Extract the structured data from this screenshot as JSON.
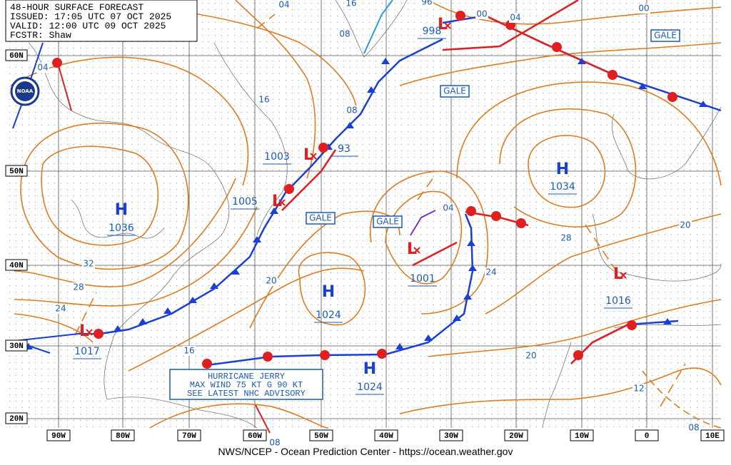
{
  "header": {
    "lines": [
      "48-HOUR SURFACE FORECAST",
      "ISSUED: 17:05 UTC 07 OCT 2025",
      "VALID: 12:00 UTC 09 OCT 2025",
      "FCSTR: Shaw"
    ]
  },
  "grid": {
    "lat_labels": [
      "60N",
      "50N",
      "40N",
      "30N",
      "20N"
    ],
    "lon_labels": [
      "90W",
      "80W",
      "70W",
      "60W",
      "50W",
      "40W",
      "30W",
      "20W",
      "10W",
      "0",
      "10E"
    ]
  },
  "logo": "NOAA",
  "systems": [
    {
      "symbol": "L",
      "pressure": "998"
    },
    {
      "symbol": "L",
      "pressure": "1003"
    },
    {
      "pressure": "93"
    },
    {
      "symbol": "L",
      "pressure": "1005"
    },
    {
      "symbol": "H",
      "pressure": "1036"
    },
    {
      "symbol": "H",
      "pressure": "1034"
    },
    {
      "symbol": "L",
      "pressure": "1001"
    },
    {
      "symbol": "H",
      "pressure": "1024"
    },
    {
      "symbol": "L",
      "pressure": "1016"
    },
    {
      "symbol": "L",
      "pressure": "1017"
    },
    {
      "symbol": "H",
      "pressure": "1024"
    }
  ],
  "isobar_labels": [
    "04",
    "16",
    "08",
    "96",
    "00",
    "04",
    "00",
    "04",
    "16",
    "08",
    "32",
    "28",
    "24",
    "20",
    "16",
    "04",
    "28",
    "24",
    "20",
    "20",
    "12",
    "08",
    "08"
  ],
  "gale_warnings": [
    "GALE",
    "GALE",
    "GALE",
    "GALE"
  ],
  "hurricane_advisory": {
    "lines": [
      "HURRICANE JERRY",
      "MAX WIND 75 KT G 90 KT",
      "SEE LATEST NHC ADVISORY"
    ]
  },
  "footer": "NWS/NCEP - Ocean Prediction Center - https://ocean.weather.gov"
}
